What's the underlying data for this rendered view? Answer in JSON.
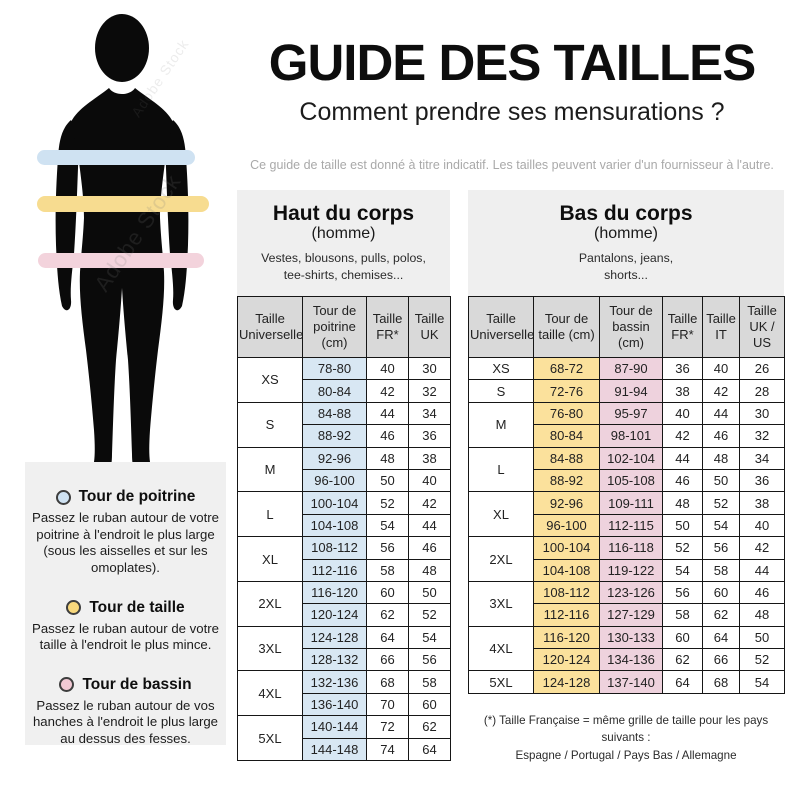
{
  "page": {
    "title": "GUIDE DES TAILLES",
    "subtitle": "Comment prendre ses mensurations ?",
    "disclaimer": "Ce guide de taille est donné à titre indicatif. Les tailles peuvent varier d'un fournisseur à l'autre.",
    "watermark": "Adobe Stock"
  },
  "colors": {
    "blue": "#d8e7f3",
    "yellow": "#fbe19c",
    "pink": "#eed2dd",
    "blue_band": "#cfe2f2",
    "yellow_band": "#f7dc90",
    "pink_band": "#f3d3dc",
    "blue_dot": "#cfe2f2",
    "yellow_dot": "#f8d87c",
    "pink_dot": "#f1c9d4",
    "header_gray": "#d9d9d9",
    "panel_gray": "#efefef"
  },
  "legend": {
    "items": [
      {
        "key": "poitrine",
        "dot": "blue_dot",
        "title": "Tour de poitrine",
        "text": "Passez le ruban autour de votre poitrine à l'endroit le plus large (sous les aisselles et sur les omoplates)."
      },
      {
        "key": "taille",
        "dot": "yellow_dot",
        "title": "Tour de taille",
        "text": "Passez le ruban autour de votre taille à l'endroit le plus mince."
      },
      {
        "key": "bassin",
        "dot": "pink_dot",
        "title": "Tour de bassin",
        "text": "Passez le ruban autour de vos hanches à l'endroit le plus large au dessus des fesses."
      }
    ]
  },
  "upper_section": {
    "title": "Haut du corps",
    "subtitle": "(homme)",
    "description": "Vestes, blousons, pulls, polos,\ntee-shirts, chemises..."
  },
  "lower_section": {
    "title": "Bas du corps",
    "subtitle": "(homme)",
    "description": "Pantalons, jeans,\nshorts..."
  },
  "upper_table": {
    "headers": [
      "Taille Universelle",
      "Tour de poitrine (cm)",
      "Taille FR*",
      "Taille UK"
    ],
    "highlight_cols": {
      "0": "blue"
    },
    "groups": [
      {
        "size": "XS",
        "rows": [
          [
            "78-80",
            "40",
            "30"
          ],
          [
            "80-84",
            "42",
            "32"
          ]
        ]
      },
      {
        "size": "S",
        "rows": [
          [
            "84-88",
            "44",
            "34"
          ],
          [
            "88-92",
            "46",
            "36"
          ]
        ]
      },
      {
        "size": "M",
        "rows": [
          [
            "92-96",
            "48",
            "38"
          ],
          [
            "96-100",
            "50",
            "40"
          ]
        ]
      },
      {
        "size": "L",
        "rows": [
          [
            "100-104",
            "52",
            "42"
          ],
          [
            "104-108",
            "54",
            "44"
          ]
        ]
      },
      {
        "size": "XL",
        "rows": [
          [
            "108-112",
            "56",
            "46"
          ],
          [
            "112-116",
            "58",
            "48"
          ]
        ]
      },
      {
        "size": "2XL",
        "rows": [
          [
            "116-120",
            "60",
            "50"
          ],
          [
            "120-124",
            "62",
            "52"
          ]
        ]
      },
      {
        "size": "3XL",
        "rows": [
          [
            "124-128",
            "64",
            "54"
          ],
          [
            "128-132",
            "66",
            "56"
          ]
        ]
      },
      {
        "size": "4XL",
        "rows": [
          [
            "132-136",
            "68",
            "58"
          ],
          [
            "136-140",
            "70",
            "60"
          ]
        ]
      },
      {
        "size": "5XL",
        "rows": [
          [
            "140-144",
            "72",
            "62"
          ],
          [
            "144-148",
            "74",
            "64"
          ]
        ]
      }
    ]
  },
  "lower_table": {
    "headers": [
      "Taille Universelle",
      "Tour de taille (cm)",
      "Tour de bassin (cm)",
      "Taille FR*",
      "Taille IT",
      "Taille UK / US"
    ],
    "highlight_cols": {
      "0": "yellow",
      "1": "pink"
    },
    "groups": [
      {
        "size": "XS",
        "rows": [
          [
            "68-72",
            "87-90",
            "36",
            "40",
            "26"
          ]
        ]
      },
      {
        "size": "S",
        "rows": [
          [
            "72-76",
            "91-94",
            "38",
            "42",
            "28"
          ]
        ]
      },
      {
        "size": "M",
        "rows": [
          [
            "76-80",
            "95-97",
            "40",
            "44",
            "30"
          ],
          [
            "80-84",
            "98-101",
            "42",
            "46",
            "32"
          ]
        ]
      },
      {
        "size": "L",
        "rows": [
          [
            "84-88",
            "102-104",
            "44",
            "48",
            "34"
          ],
          [
            "88-92",
            "105-108",
            "46",
            "50",
            "36"
          ]
        ]
      },
      {
        "size": "XL",
        "rows": [
          [
            "92-96",
            "109-111",
            "48",
            "52",
            "38"
          ],
          [
            "96-100",
            "112-115",
            "50",
            "54",
            "40"
          ]
        ]
      },
      {
        "size": "2XL",
        "rows": [
          [
            "100-104",
            "116-118",
            "52",
            "56",
            "42"
          ],
          [
            "104-108",
            "119-122",
            "54",
            "58",
            "44"
          ]
        ]
      },
      {
        "size": "3XL",
        "rows": [
          [
            "108-112",
            "123-126",
            "56",
            "60",
            "46"
          ],
          [
            "112-116",
            "127-129",
            "58",
            "62",
            "48"
          ]
        ]
      },
      {
        "size": "4XL",
        "rows": [
          [
            "116-120",
            "130-133",
            "60",
            "64",
            "50"
          ],
          [
            "120-124",
            "134-136",
            "62",
            "66",
            "52"
          ]
        ]
      },
      {
        "size": "5XL",
        "rows": [
          [
            "124-128",
            "137-140",
            "64",
            "68",
            "54"
          ]
        ]
      }
    ]
  },
  "footnote": "(*) Taille Française = même grille de taille pour les pays suivants :\nEspagne / Portugal / Pays Bas / Allemagne"
}
